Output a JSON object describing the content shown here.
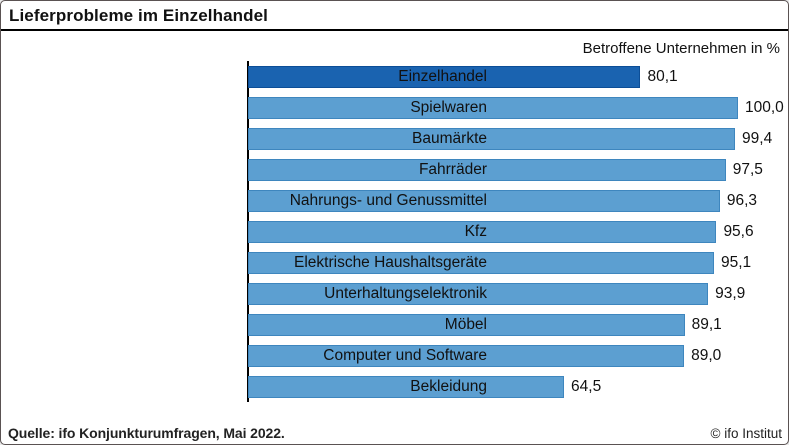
{
  "header": {
    "title": "Lieferprobleme im Einzelhandel",
    "subtitle": "Betroffene Unternehmen in %"
  },
  "footer": {
    "source": "Quelle: ifo Konjunkturumfragen, Mai 2022.",
    "copyright": "© ifo Institut"
  },
  "colors": {
    "highlight_bar_fill": "#1A63B0",
    "highlight_bar_border": "#0C4E97",
    "bar_fill": "#5C9FD1",
    "bar_border": "#3E86BE",
    "axis": "#000000",
    "text": "#111111"
  },
  "chart_data": {
    "type": "bar",
    "orientation": "horizontal",
    "title": "Lieferprobleme im Einzelhandel",
    "subtitle": "Betroffene Unternehmen in %",
    "xlabel": "Betroffene Unternehmen in %",
    "ylabel": "",
    "xlim": [
      0,
      100
    ],
    "grid": false,
    "legend": false,
    "highlight_index": 0,
    "categories": [
      "Einzelhandel",
      "Spielwaren",
      "Baumärkte",
      "Fahrräder",
      "Nahrungs- und Genussmittel",
      "Kfz",
      "Elektrische Haushaltsgeräte",
      "Unterhaltungselektronik",
      "Möbel",
      "Computer und Software",
      "Bekleidung"
    ],
    "values": [
      80.1,
      100.0,
      99.4,
      97.5,
      96.3,
      95.6,
      95.1,
      93.9,
      89.1,
      89.0,
      64.5
    ],
    "value_labels": [
      "80,1",
      "100,0",
      "99,4",
      "97,5",
      "96,3",
      "95,6",
      "95,1",
      "93,9",
      "89,1",
      "89,0",
      "64,5"
    ]
  }
}
